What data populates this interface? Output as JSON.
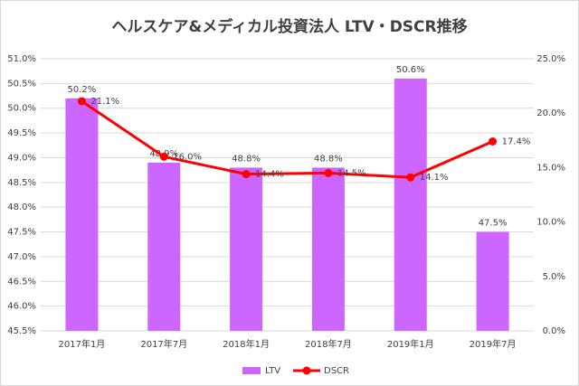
{
  "chart_data": {
    "type": "combo",
    "title": "ヘルスケア&メディカル投資法人 LTV・DSCR推移",
    "categories": [
      "2017年1月",
      "2017年7月",
      "2018年1月",
      "2018年7月",
      "2019年1月",
      "2019年7月"
    ],
    "series": [
      {
        "name": "LTV",
        "type": "bar",
        "color": "#cc66ff",
        "values": [
          50.2,
          48.9,
          48.8,
          48.8,
          50.6,
          47.5
        ],
        "value_labels": [
          "50.2%",
          "48.9%",
          "48.8%",
          "48.8%",
          "50.6%",
          "47.5%"
        ]
      },
      {
        "name": "DSCR",
        "type": "line",
        "axis": "y2",
        "color": "#ff0000",
        "values": [
          21.1,
          16.0,
          14.4,
          14.5,
          14.1,
          17.4
        ],
        "value_labels": [
          "21.1%",
          "16.0%",
          "14.4%",
          "14.5%",
          "14.1%",
          "17.4%"
        ]
      }
    ],
    "ylim": [
      45.5,
      51.0
    ],
    "yticks": [
      {
        "value": 45.5,
        "label": "45.5%"
      },
      {
        "value": 46.0,
        "label": "46.0%"
      },
      {
        "value": 46.5,
        "label": "46.5%"
      },
      {
        "value": 47.0,
        "label": "47.0%"
      },
      {
        "value": 47.5,
        "label": "47.5%"
      },
      {
        "value": 48.0,
        "label": "48.0%"
      },
      {
        "value": 48.5,
        "label": "48.5%"
      },
      {
        "value": 49.0,
        "label": "49.0%"
      },
      {
        "value": 49.5,
        "label": "49.5%"
      },
      {
        "value": 50.0,
        "label": "50.0%"
      },
      {
        "value": 50.5,
        "label": "50.5%"
      },
      {
        "value": 51.0,
        "label": "51.0%"
      }
    ],
    "y2lim": [
      0,
      25
    ],
    "y2ticks": [
      {
        "value": 0,
        "label": "0.0%"
      },
      {
        "value": 5,
        "label": "5.0%"
      },
      {
        "value": 10,
        "label": "10.0%"
      },
      {
        "value": 15,
        "label": "15.0%"
      },
      {
        "value": 20,
        "label": "20.0%"
      },
      {
        "value": 25,
        "label": "25.0%"
      }
    ],
    "grid": true,
    "legend": "bottom"
  }
}
